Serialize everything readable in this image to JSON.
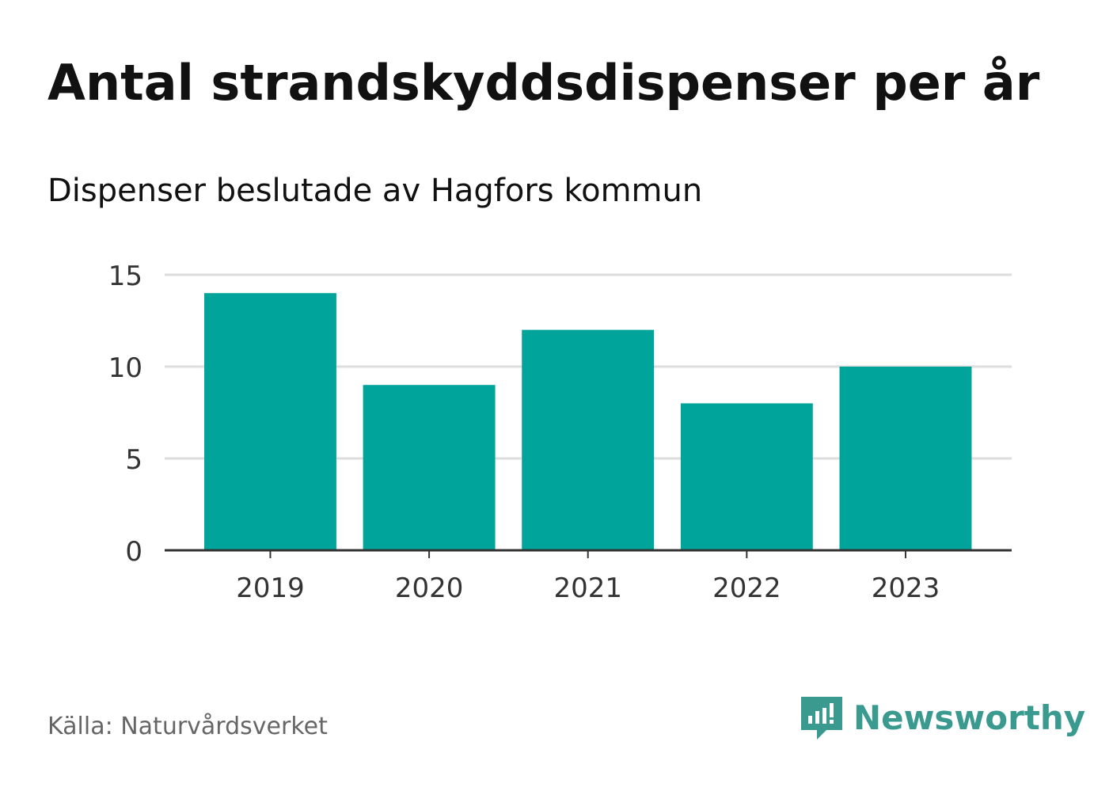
{
  "chart_data": {
    "type": "bar",
    "title": "Antal strandskyddsdispenser per år",
    "subtitle": "Dispenser beslutade av Hagfors kommun",
    "categories": [
      "2019",
      "2020",
      "2021",
      "2022",
      "2023"
    ],
    "values": [
      14,
      9,
      12,
      8,
      10
    ],
    "yticks": [
      0,
      5,
      10,
      15
    ],
    "ylim": [
      0,
      15
    ],
    "xlabel": "",
    "ylabel": "",
    "grid": true,
    "bar_color": "#00a49a"
  },
  "footer": {
    "source": "Källa: Naturvårdsverket",
    "brand": "Newsworthy",
    "brand_icon": "newsworthy-logo-icon",
    "brand_color": "#3a9a8f"
  }
}
